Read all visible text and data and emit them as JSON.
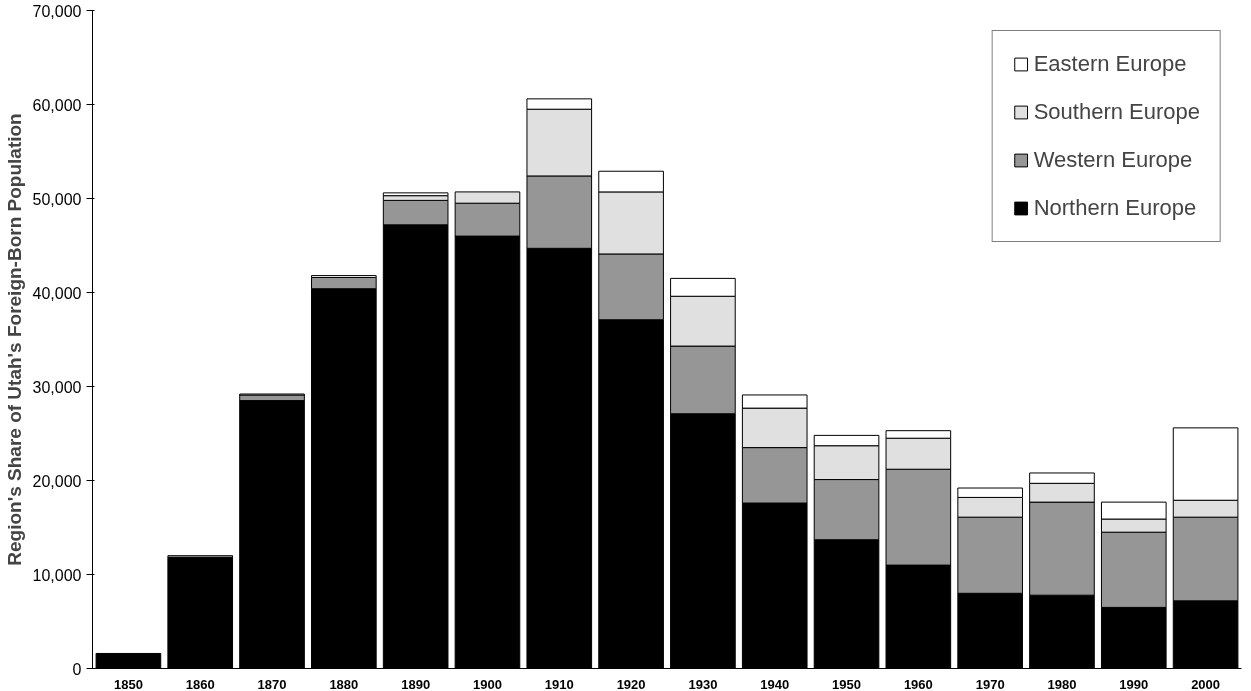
{
  "chart_data": {
    "type": "bar",
    "stacked": true,
    "ylabel": "Region's Share of Utah's Foreign-Born Population",
    "categories": [
      "1850",
      "1860",
      "1870",
      "1880",
      "1890",
      "1900",
      "1910",
      "1920",
      "1930",
      "1940",
      "1950",
      "1960",
      "1970",
      "1980",
      "1990",
      "2000"
    ],
    "series": [
      {
        "name": "Northern Europe",
        "color": "#000000",
        "values": [
          1600,
          11800,
          28500,
          40400,
          47200,
          46000,
          44700,
          37100,
          27100,
          17600,
          13700,
          11000,
          8000,
          7800,
          6500,
          7200
        ]
      },
      {
        "name": "Western Europe",
        "color": "#969696",
        "values": [
          null,
          200,
          600,
          1200,
          2600,
          3500,
          7700,
          7000,
          7200,
          5900,
          6400,
          10200,
          8100,
          9900,
          8000,
          8900
        ]
      },
      {
        "name": "Southern Europe",
        "color": "#e0e0e0",
        "values": [
          null,
          null,
          null,
          null,
          500,
          1200,
          7100,
          6600,
          5300,
          4200,
          3600,
          3300,
          2100,
          2000,
          1400,
          1800
        ]
      },
      {
        "name": "Eastern Europe",
        "color": "#ffffff",
        "values": [
          null,
          null,
          100,
          200,
          300,
          null,
          1100,
          2200,
          1900,
          1400,
          1100,
          800,
          1000,
          1100,
          1800,
          7700
        ]
      }
    ],
    "ylim": [
      0,
      70000
    ],
    "yticks": [
      {
        "value": 0,
        "label": "0"
      },
      {
        "value": 10000,
        "label": "10,000"
      },
      {
        "value": 20000,
        "label": "20,000"
      },
      {
        "value": 30000,
        "label": "30,000"
      },
      {
        "value": 40000,
        "label": "40,000"
      },
      {
        "value": 50000,
        "label": "50,000"
      },
      {
        "value": 60000,
        "label": "60,000"
      },
      {
        "value": 70000,
        "label": "70,000"
      }
    ],
    "grid": false,
    "legend": "top right"
  }
}
